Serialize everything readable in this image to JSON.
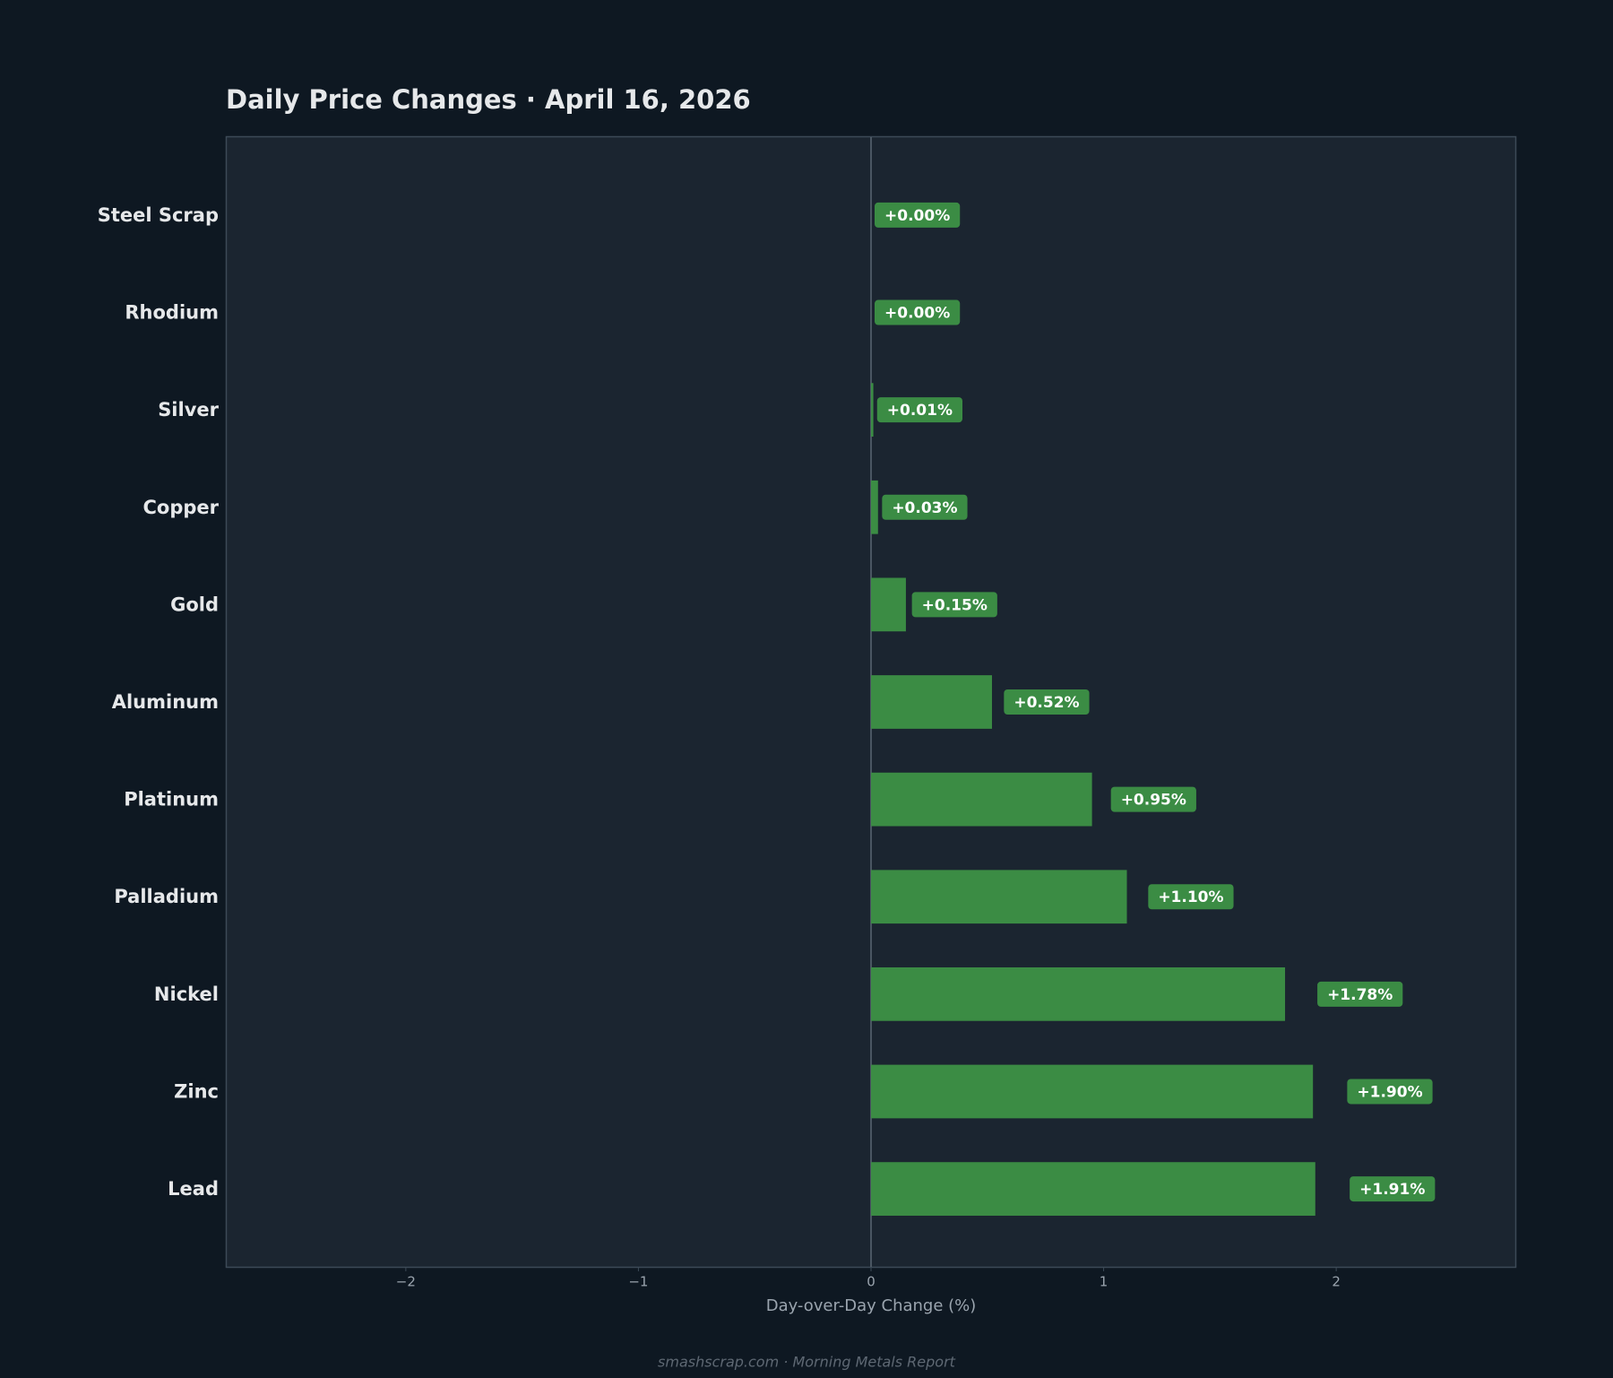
{
  "chart_data": {
    "type": "barh",
    "title": "Daily Price Changes  ·  April 16, 2026",
    "xlabel": "Day-over-Day Change (%)",
    "footer": "smashscrap.com  ·  Morning Metals Report",
    "categories": [
      "Steel Scrap",
      "Rhodium",
      "Silver",
      "Copper",
      "Gold",
      "Aluminum",
      "Platinum",
      "Palladium",
      "Nickel",
      "Zinc",
      "Lead"
    ],
    "values": [
      0.0,
      0.0,
      0.01,
      0.03,
      0.15,
      0.52,
      0.95,
      1.1,
      1.78,
      1.9,
      1.91
    ],
    "value_labels": [
      "+0.00%",
      "+0.00%",
      "+0.01%",
      "+0.03%",
      "+0.15%",
      "+0.52%",
      "+0.95%",
      "+1.10%",
      "+1.78%",
      "+1.90%",
      "+1.91%"
    ],
    "color": "#3b8c44",
    "xlim": [
      -2.77,
      2.77
    ],
    "xticks": [
      {
        "value": -2,
        "label": "−2"
      },
      {
        "value": -1,
        "label": "−1"
      },
      0,
      1,
      2
    ]
  }
}
